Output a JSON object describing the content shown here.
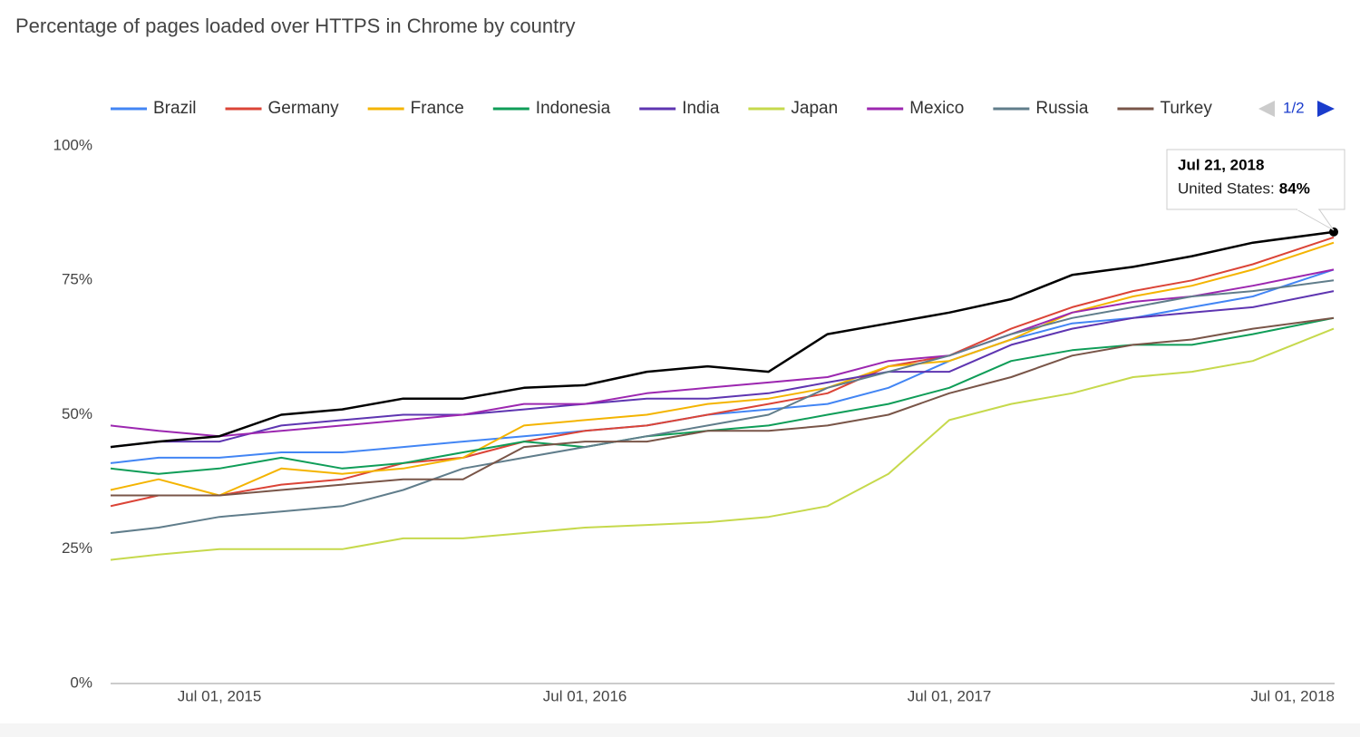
{
  "chart_data": {
    "type": "line",
    "title": "Percentage of pages loaded over HTTPS in Chrome by country",
    "x": [
      "2015-03-14",
      "2015-05-01",
      "2015-07-01",
      "2015-09-01",
      "2015-11-01",
      "2016-01-01",
      "2016-03-01",
      "2016-05-01",
      "2016-07-01",
      "2016-09-01",
      "2016-11-01",
      "2017-01-01",
      "2017-03-01",
      "2017-05-01",
      "2017-07-01",
      "2017-09-01",
      "2017-11-01",
      "2018-01-01",
      "2018-03-01",
      "2018-05-01",
      "2018-07-21"
    ],
    "xlim": [
      "2015-03-14",
      "2018-07-21"
    ],
    "xticks": [
      {
        "value": "2015-07-01",
        "label": "Jul 01, 2015"
      },
      {
        "value": "2016-07-01",
        "label": "Jul 01, 2016"
      },
      {
        "value": "2017-07-01",
        "label": "Jul 01, 2017"
      },
      {
        "value": "2018-07-01",
        "label": "Jul 01, 2018"
      }
    ],
    "ylim": [
      0,
      100
    ],
    "yticks": [
      {
        "value": 0,
        "label": "0%"
      },
      {
        "value": 25,
        "label": "25%"
      },
      {
        "value": 50,
        "label": "50%"
      },
      {
        "value": 75,
        "label": "75%"
      },
      {
        "value": 100,
        "label": "100%"
      }
    ],
    "grid": false,
    "legend": "top",
    "legend_pager": "1/2",
    "series": [
      {
        "name": "Brazil",
        "color": "#4285f4",
        "values": [
          41,
          42,
          42,
          43,
          43,
          44,
          45,
          46,
          47,
          48,
          50,
          51,
          52,
          55,
          60,
          64,
          67,
          68,
          70,
          72,
          77
        ]
      },
      {
        "name": "Germany",
        "color": "#db4437",
        "values": [
          33,
          35,
          35,
          37,
          38,
          41,
          42,
          45,
          47,
          48,
          50,
          52,
          54,
          59,
          61,
          66,
          70,
          73,
          75,
          78,
          83
        ]
      },
      {
        "name": "France",
        "color": "#f4b400",
        "values": [
          36,
          38,
          35,
          40,
          39,
          40,
          42,
          48,
          49,
          50,
          52,
          53,
          55,
          59,
          60,
          64,
          69,
          72,
          74,
          77,
          82
        ]
      },
      {
        "name": "Indonesia",
        "color": "#0f9d58",
        "values": [
          40,
          39,
          40,
          42,
          40,
          41,
          43,
          45,
          44,
          46,
          47,
          48,
          50,
          52,
          55,
          60,
          62,
          63,
          63,
          65,
          68
        ]
      },
      {
        "name": "India",
        "color": "#5e35b1",
        "values": [
          44,
          45,
          45,
          48,
          49,
          50,
          50,
          51,
          52,
          53,
          53,
          54,
          56,
          58,
          58,
          63,
          66,
          68,
          69,
          70,
          73
        ]
      },
      {
        "name": "Japan",
        "color": "#c6d94c",
        "values": [
          23,
          24,
          25,
          25,
          25,
          27,
          27,
          28,
          29,
          29.5,
          30,
          31,
          33,
          39,
          49,
          52,
          54,
          57,
          58,
          60,
          66
        ]
      },
      {
        "name": "Mexico",
        "color": "#9c27b0",
        "values": [
          48,
          47,
          46,
          47,
          48,
          49,
          50,
          52,
          52,
          54,
          55,
          56,
          57,
          60,
          61,
          65,
          69,
          71,
          72,
          74,
          77
        ]
      },
      {
        "name": "Russia",
        "color": "#607d8b",
        "values": [
          28,
          29,
          31,
          32,
          33,
          36,
          40,
          42,
          44,
          46,
          48,
          50,
          55,
          58,
          61,
          65,
          68,
          70,
          72,
          73,
          75
        ]
      },
      {
        "name": "Turkey",
        "color": "#795548",
        "values": [
          35,
          35,
          35,
          36,
          37,
          38,
          38,
          44,
          45,
          45,
          47,
          47,
          48,
          50,
          54,
          57,
          61,
          63,
          64,
          66,
          68
        ]
      },
      {
        "name": "United States",
        "color": "#000000",
        "values": [
          44,
          45,
          46,
          50,
          51,
          53,
          53,
          55,
          55.5,
          58,
          59,
          58,
          65,
          67,
          69,
          71.5,
          76,
          77.5,
          79.5,
          82,
          84
        ]
      }
    ],
    "tooltip": {
      "date": "Jul 21, 2018",
      "series_label": "United States:",
      "value_label": "84%"
    }
  }
}
